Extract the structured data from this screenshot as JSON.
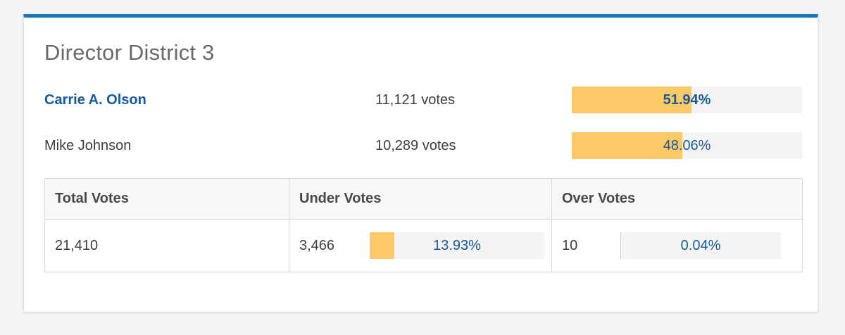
{
  "page": {
    "background_color": "#f4f4f5",
    "accent_color": "#1778be"
  },
  "contest": {
    "title": "Director District 3",
    "candidates": [
      {
        "name": "Carrie A. Olson",
        "votes_label": "11,121 votes",
        "percent_label": "51.94%",
        "percent_value": 51.94,
        "winner": true
      },
      {
        "name": "Mike Johnson",
        "votes_label": "10,289 votes",
        "percent_label": "48.06%",
        "percent_value": 48.06,
        "winner": false
      }
    ],
    "summary": {
      "headers": {
        "total": "Total Votes",
        "under": "Under Votes",
        "over": "Over Votes"
      },
      "total_votes": "21,410",
      "under_votes": {
        "count": "3,466",
        "percent_label": "13.93%",
        "percent_value": 13.93
      },
      "over_votes": {
        "count": "10",
        "percent_label": "0.04%",
        "percent_value": 0.04
      }
    }
  },
  "colors": {
    "bar_fill": "#fbc966",
    "bar_track": "#f4f4f4",
    "percent_text": "#15599e",
    "link_text": "#15599e",
    "title_text": "#6a6a6e"
  },
  "chart_data": {
    "type": "bar",
    "title": "Director District 3",
    "categories": [
      "Carrie A. Olson",
      "Mike Johnson"
    ],
    "values": [
      51.94,
      48.06
    ],
    "value_labels": [
      "51.94%",
      "48.06%"
    ],
    "vote_counts": [
      11121,
      10289
    ],
    "xlim": [
      0,
      100
    ],
    "legend_position": "none",
    "grid": false
  }
}
